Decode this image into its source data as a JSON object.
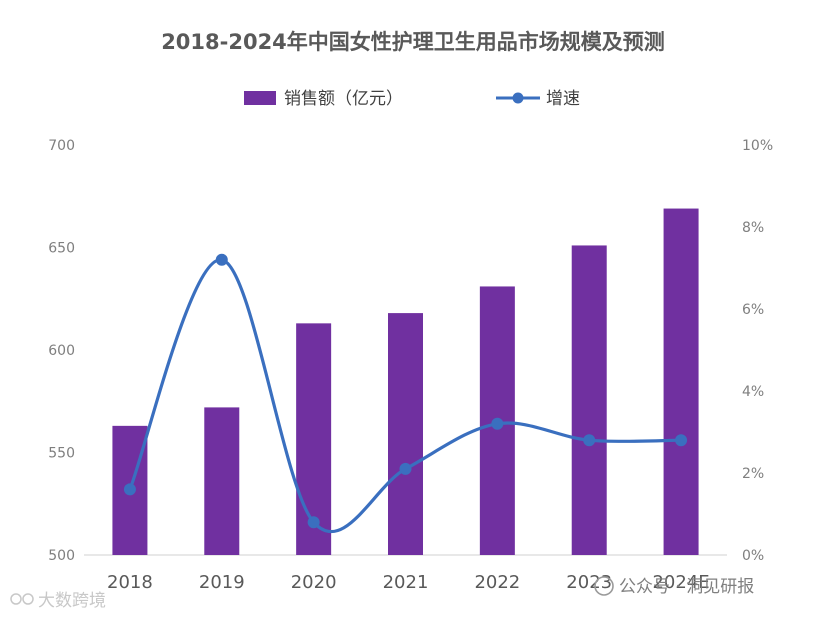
{
  "chart_data": {
    "type": "bar",
    "title": "2018-2024年中国女性护理卫生用品市场规模及预测",
    "categories": [
      "2018",
      "2019",
      "2020",
      "2021",
      "2022",
      "2023",
      "2024E"
    ],
    "series": [
      {
        "name": "销售额（亿元）",
        "type": "bar",
        "axis": "left",
        "values": [
          563,
          572,
          613,
          618,
          631,
          651,
          669
        ],
        "color": "#7030a0"
      },
      {
        "name": "增速",
        "type": "line",
        "axis": "right",
        "unit": "%",
        "values": [
          1.6,
          7.2,
          0.8,
          2.1,
          3.2,
          2.8,
          2.8
        ],
        "color": "#3a6fbf"
      }
    ],
    "y_left": {
      "ylim": [
        500,
        700
      ],
      "ticks": [
        "500",
        "550",
        "600",
        "650",
        "700"
      ],
      "values": [
        500,
        550,
        600,
        650,
        700
      ]
    },
    "y_right": {
      "ylim": [
        0,
        10
      ],
      "ticks": [
        "0%",
        "2%",
        "4%",
        "6%",
        "8%",
        "10%"
      ],
      "values": [
        0,
        2,
        4,
        6,
        8,
        10
      ]
    },
    "legend": "top-center",
    "grid": false
  },
  "watermarks": {
    "left": "大数跨境",
    "right": "公众号 · 洞见研报"
  }
}
